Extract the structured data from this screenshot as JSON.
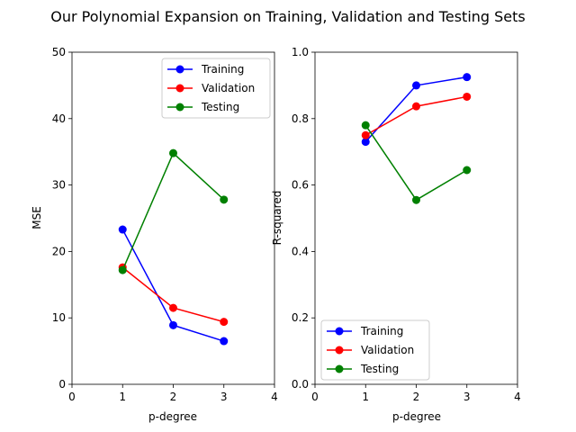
{
  "chart_data": {
    "title": "Our Polynomial Expansion on Training, Validation and Testing Sets",
    "charts": [
      {
        "type": "line",
        "xlabel": "p-degree",
        "ylabel": "MSE",
        "xlim": [
          0,
          4
        ],
        "ylim": [
          0,
          50
        ],
        "xticks": [
          0,
          1,
          2,
          3,
          4
        ],
        "yticks": [
          0,
          10,
          20,
          30,
          40,
          50
        ],
        "x": [
          1,
          2,
          3
        ],
        "legend_position": "top-right",
        "grid": false,
        "series": [
          {
            "name": "Training",
            "color": "#0000ff",
            "values": [
              23.3,
              8.9,
              6.5
            ]
          },
          {
            "name": "Validation",
            "color": "#ff0000",
            "values": [
              17.6,
              11.5,
              9.4
            ]
          },
          {
            "name": "Testing",
            "color": "#008000",
            "values": [
              17.2,
              34.8,
              27.8
            ]
          }
        ]
      },
      {
        "type": "line",
        "xlabel": "p-degree",
        "ylabel": "R-squared",
        "xlim": [
          0,
          4
        ],
        "ylim": [
          0,
          1
        ],
        "xticks": [
          0,
          1,
          2,
          3,
          4
        ],
        "yticks": [
          0.0,
          0.2,
          0.4,
          0.6,
          0.8,
          1.0
        ],
        "ytick_labels": [
          "0.0",
          "0.2",
          "0.4",
          "0.6",
          "0.8",
          "1.0"
        ],
        "x": [
          1,
          2,
          3
        ],
        "legend_position": "bottom-left",
        "grid": false,
        "series": [
          {
            "name": "Training",
            "color": "#0000ff",
            "values": [
              0.73,
              0.9,
              0.925
            ]
          },
          {
            "name": "Validation",
            "color": "#ff0000",
            "values": [
              0.75,
              0.837,
              0.866
            ]
          },
          {
            "name": "Testing",
            "color": "#008000",
            "values": [
              0.78,
              0.555,
              0.645
            ]
          }
        ]
      }
    ]
  }
}
